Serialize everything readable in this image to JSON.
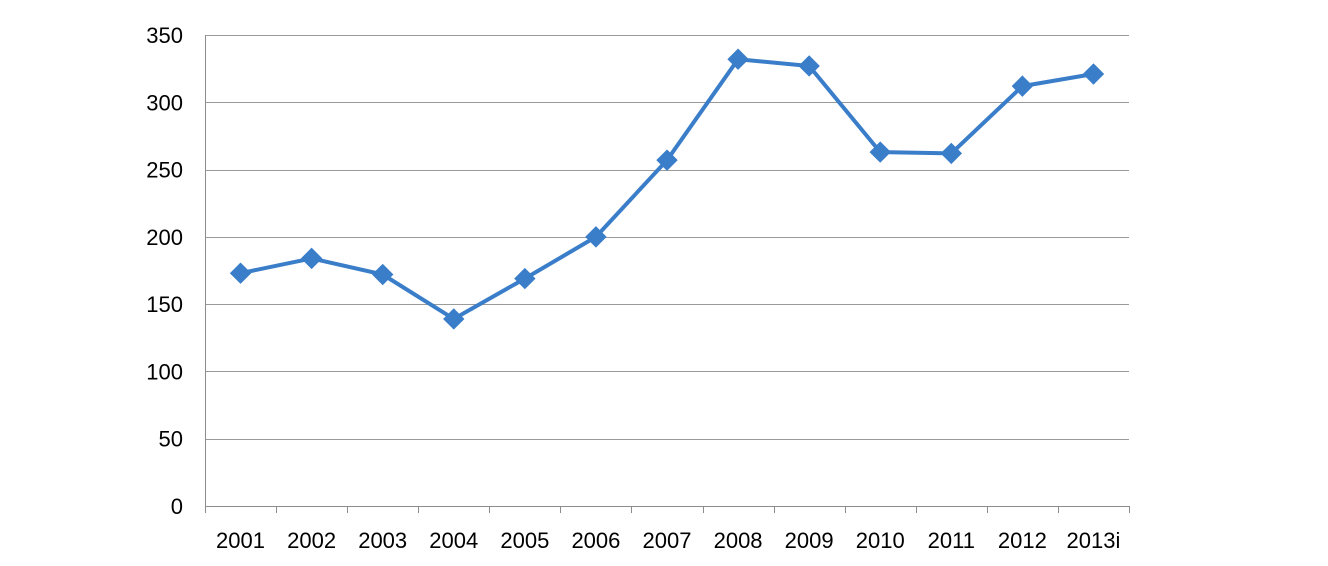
{
  "chart_data": {
    "type": "line",
    "title": "",
    "xlabel": "",
    "ylabel": "",
    "categories": [
      "2001",
      "2002",
      "2003",
      "2004",
      "2005",
      "2006",
      "2007",
      "2008",
      "2009",
      "2010",
      "2011",
      "2012",
      "2013i"
    ],
    "series": [
      {
        "values": [
          173,
          184,
          172,
          139,
          169,
          200,
          257,
          332,
          327,
          263,
          262,
          312,
          321
        ],
        "color": "#3a7dc9",
        "marker": "diamond"
      }
    ],
    "ylim": [
      0,
      350
    ],
    "yticks": [
      0,
      50,
      100,
      150,
      200,
      250,
      300,
      350
    ],
    "grid": true,
    "legend": "none"
  }
}
